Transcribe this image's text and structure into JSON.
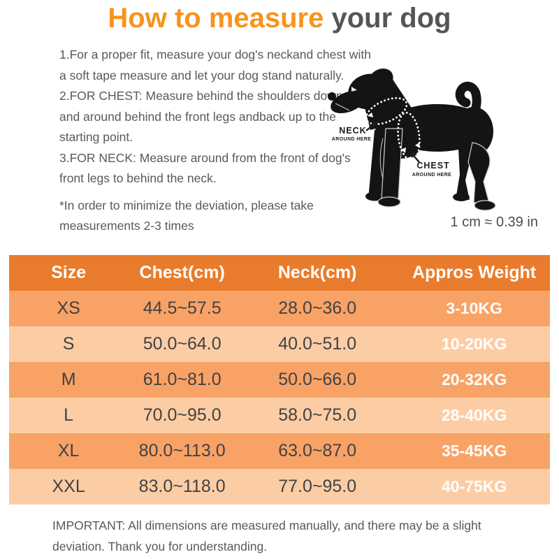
{
  "title": {
    "highlight": "How to measure",
    "rest": " your dog"
  },
  "instructions": {
    "steps": [
      "1.For a proper fit, measure your dog's neckand chest with",
      "a soft tape measure and let your dog stand naturally.",
      "2.FOR CHEST: Measure behind the shoulders down",
      "and around behind the front legs andback up to the",
      "starting point.",
      "3.FOR NECK: Measure around from the front of dog's",
      "front legs to behind the neck."
    ],
    "note": [
      "*In order to minimize the deviation, please take",
      "measurements 2-3 times"
    ]
  },
  "diagram": {
    "illustration": "black-dog-silhouette",
    "neck_label": "NECK",
    "neck_sublabel": "AROUND HERE",
    "chest_label": "CHEST",
    "chest_sublabel": "AROUND HERE",
    "scale_note": "1 cm ≈ 0.39 in"
  },
  "size_chart": {
    "headers": [
      "Size",
      "Chest(cm)",
      "Neck(cm)",
      "Appros Weight"
    ],
    "rows": [
      {
        "size": "XS",
        "chest": "44.5~57.5",
        "neck": "28.0~36.0",
        "weight": "3-10KG"
      },
      {
        "size": "S",
        "chest": "50.0~64.0",
        "neck": "40.0~51.0",
        "weight": "10-20KG"
      },
      {
        "size": "M",
        "chest": "61.0~81.0",
        "neck": "50.0~66.0",
        "weight": "20-32KG"
      },
      {
        "size": "L",
        "chest": "70.0~95.0",
        "neck": "58.0~75.0",
        "weight": "28-40KG"
      },
      {
        "size": "XL",
        "chest": "80.0~113.0",
        "neck": "63.0~87.0",
        "weight": "35-45KG"
      },
      {
        "size": "XXL",
        "chest": "83.0~118.0",
        "neck": "77.0~95.0",
        "weight": "40-75KG"
      }
    ]
  },
  "footer": {
    "lines": [
      "IMPORTANT: All dimensions are measured manually, and there may be a slight",
      "deviation. Thank you for understanding."
    ]
  },
  "colors": {
    "title_orange": "#F7941D",
    "table_header_orange": "#E87C2C",
    "row_orange": "#F8A266",
    "row_peach": "#FCCDA4",
    "body_text_gray": "#58595B",
    "table_text_gray": "#414244",
    "weight_text": "#FFFFFF"
  }
}
